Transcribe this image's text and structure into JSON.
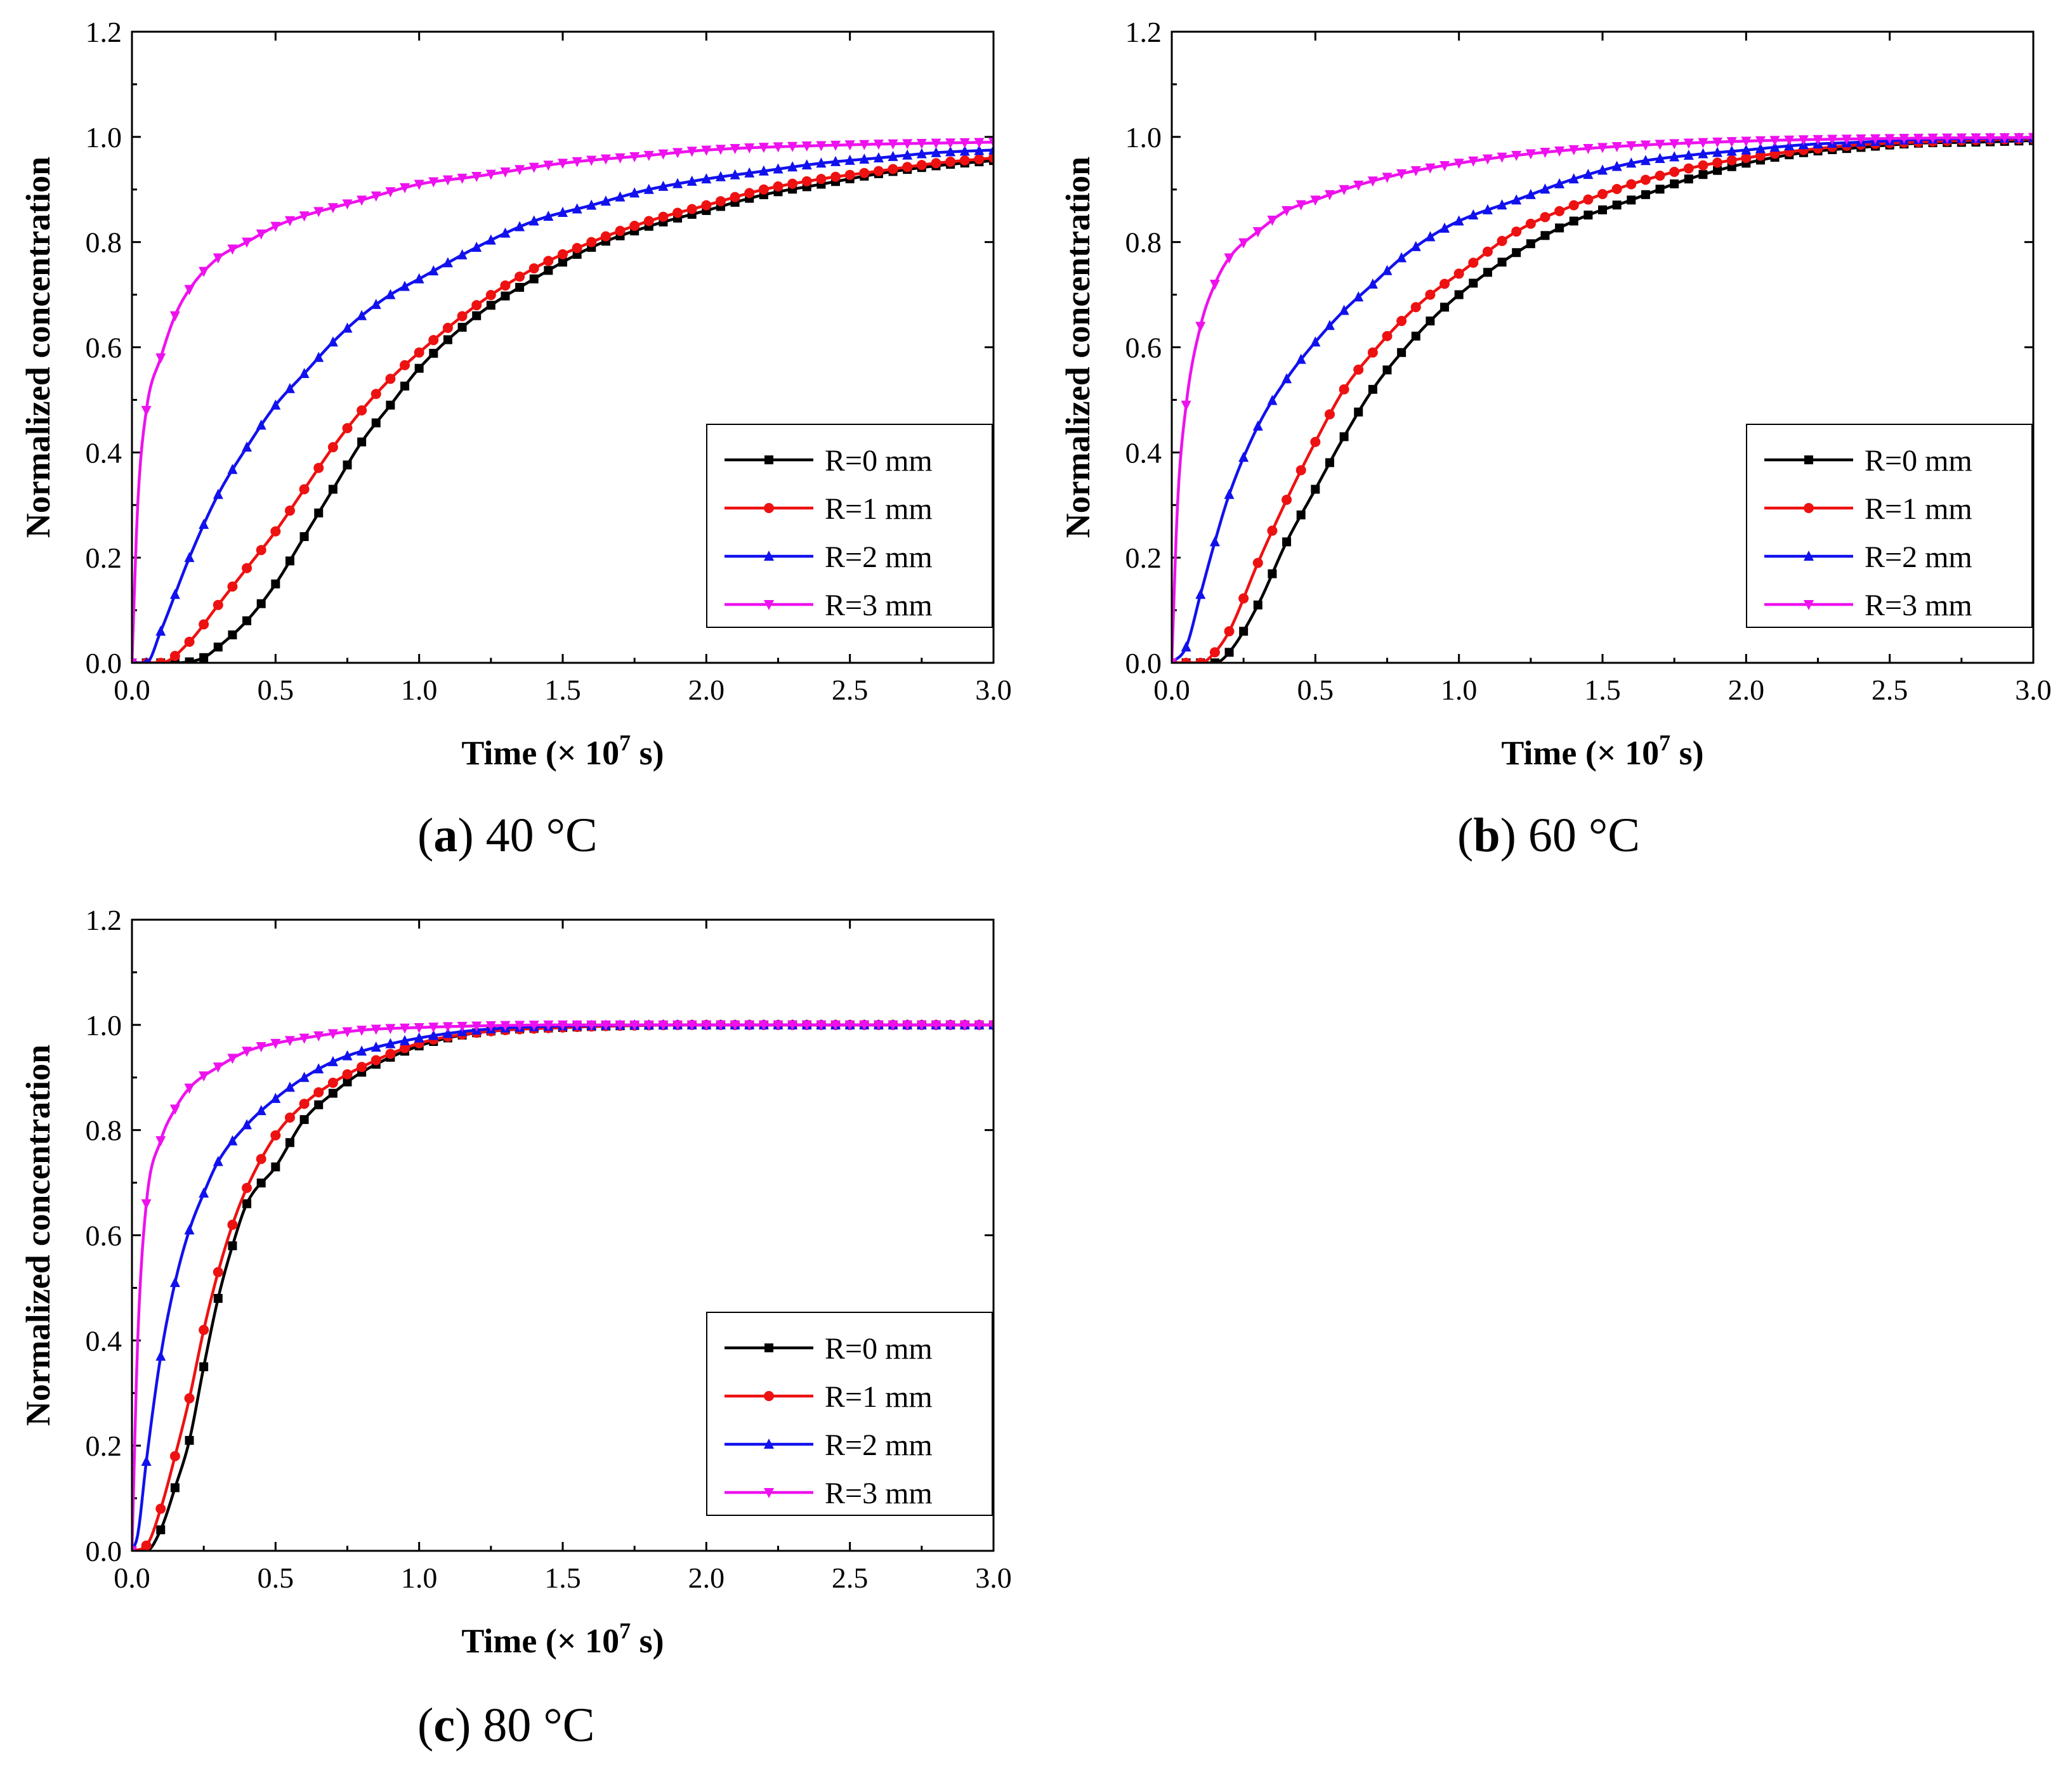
{
  "colors": {
    "R=0 mm": "#000000",
    "R=1 mm": "#ee1111",
    "R=2 mm": "#1111ee",
    "R=3 mm": "#ee11ee"
  },
  "chart_data": [
    {
      "type": "line",
      "caption_letter": "a",
      "caption_rest": "40 °C",
      "xlabel_main": "Time (× 10",
      "xlabel_sup": "7",
      "xlabel_end": " s)",
      "ylabel": "Normalized concentration",
      "xlim": [
        0,
        3.0
      ],
      "ylim": [
        0,
        1.2
      ],
      "xticks": [
        "0.0",
        "0.5",
        "1.0",
        "1.5",
        "2.0",
        "2.5",
        "3.0"
      ],
      "yticks": [
        "0.0",
        "0.2",
        "0.4",
        "0.6",
        "0.8",
        "1.0",
        "1.2"
      ],
      "legend_position": "bottom-right",
      "series": [
        {
          "name": "R=0 mm",
          "marker": "square",
          "x": [
            0,
            0.15,
            0.25,
            0.3,
            0.4,
            0.5,
            0.6,
            0.7,
            0.8,
            0.9,
            1.0,
            1.2,
            1.4,
            1.6,
            1.8,
            2.0,
            2.2,
            2.4,
            2.6,
            2.8,
            3.0
          ],
          "y": [
            0,
            0,
            0.01,
            0.03,
            0.08,
            0.15,
            0.24,
            0.33,
            0.42,
            0.49,
            0.56,
            0.66,
            0.73,
            0.79,
            0.83,
            0.86,
            0.89,
            0.91,
            0.93,
            0.945,
            0.955
          ]
        },
        {
          "name": "R=1 mm",
          "marker": "circle",
          "x": [
            0,
            0.1,
            0.2,
            0.3,
            0.4,
            0.5,
            0.6,
            0.7,
            0.8,
            0.9,
            1.0,
            1.2,
            1.4,
            1.6,
            1.8,
            2.0,
            2.2,
            2.4,
            2.6,
            2.8,
            3.0
          ],
          "y": [
            0,
            0,
            0.04,
            0.11,
            0.18,
            0.25,
            0.33,
            0.41,
            0.48,
            0.54,
            0.59,
            0.68,
            0.75,
            0.8,
            0.84,
            0.87,
            0.9,
            0.92,
            0.935,
            0.95,
            0.96
          ]
        },
        {
          "name": "R=2 mm",
          "marker": "triangle-up",
          "x": [
            0,
            0.05,
            0.1,
            0.2,
            0.3,
            0.4,
            0.5,
            0.6,
            0.7,
            0.8,
            0.9,
            1.0,
            1.2,
            1.4,
            1.6,
            1.8,
            2.0,
            2.2,
            2.4,
            2.6,
            2.8,
            3.0
          ],
          "y": [
            0,
            0,
            0.06,
            0.2,
            0.32,
            0.41,
            0.49,
            0.55,
            0.61,
            0.66,
            0.7,
            0.73,
            0.79,
            0.84,
            0.87,
            0.9,
            0.92,
            0.935,
            0.95,
            0.96,
            0.97,
            0.975
          ]
        },
        {
          "name": "R=3 mm",
          "marker": "triangle-down",
          "x": [
            0,
            0.02,
            0.05,
            0.1,
            0.15,
            0.2,
            0.3,
            0.4,
            0.5,
            0.6,
            0.8,
            1.0,
            1.2,
            1.5,
            1.8,
            2.0,
            2.5,
            3.0
          ],
          "y": [
            0,
            0.3,
            0.48,
            0.58,
            0.66,
            0.71,
            0.77,
            0.8,
            0.83,
            0.85,
            0.88,
            0.91,
            0.925,
            0.95,
            0.965,
            0.975,
            0.985,
            0.99
          ]
        }
      ]
    },
    {
      "type": "line",
      "caption_letter": "b",
      "caption_rest": "60 °C",
      "xlabel_main": "Time (× 10",
      "xlabel_sup": "7",
      "xlabel_end": " s)",
      "ylabel": "Normalized concentration",
      "xlim": [
        0,
        3.0
      ],
      "ylim": [
        0,
        1.2
      ],
      "xticks": [
        "0.0",
        "0.5",
        "1.0",
        "1.5",
        "2.0",
        "2.5",
        "3.0"
      ],
      "yticks": [
        "0.0",
        "0.2",
        "0.4",
        "0.6",
        "0.8",
        "1.0",
        "1.2"
      ],
      "legend_position": "bottom-right",
      "series": [
        {
          "name": "R=0 mm",
          "marker": "square",
          "x": [
            0,
            0.15,
            0.2,
            0.3,
            0.4,
            0.5,
            0.6,
            0.7,
            0.8,
            0.9,
            1.0,
            1.2,
            1.4,
            1.6,
            1.8,
            2.0,
            2.2,
            2.4,
            2.6,
            2.8,
            3.0
          ],
          "y": [
            0,
            0,
            0.02,
            0.11,
            0.23,
            0.33,
            0.43,
            0.52,
            0.59,
            0.65,
            0.7,
            0.78,
            0.84,
            0.88,
            0.92,
            0.95,
            0.97,
            0.98,
            0.988,
            0.99,
            0.993
          ]
        },
        {
          "name": "R=1 mm",
          "marker": "circle",
          "x": [
            0,
            0.1,
            0.15,
            0.2,
            0.3,
            0.4,
            0.5,
            0.6,
            0.7,
            0.8,
            0.9,
            1.0,
            1.2,
            1.4,
            1.6,
            1.8,
            2.0,
            2.2,
            2.4,
            2.6,
            2.8,
            3.0
          ],
          "y": [
            0,
            0,
            0.02,
            0.06,
            0.19,
            0.31,
            0.42,
            0.52,
            0.59,
            0.65,
            0.7,
            0.74,
            0.82,
            0.87,
            0.91,
            0.94,
            0.96,
            0.975,
            0.985,
            0.99,
            0.994,
            0.996
          ]
        },
        {
          "name": "R=2 mm",
          "marker": "triangle-up",
          "x": [
            0,
            0.05,
            0.1,
            0.15,
            0.2,
            0.3,
            0.4,
            0.5,
            0.6,
            0.7,
            0.8,
            0.9,
            1.0,
            1.2,
            1.4,
            1.6,
            1.8,
            2.0,
            2.2,
            2.4,
            2.6,
            2.8,
            3.0
          ],
          "y": [
            0,
            0.03,
            0.13,
            0.23,
            0.32,
            0.45,
            0.54,
            0.61,
            0.67,
            0.72,
            0.77,
            0.81,
            0.84,
            0.88,
            0.92,
            0.95,
            0.965,
            0.975,
            0.985,
            0.99,
            0.995,
            0.997,
            0.998
          ]
        },
        {
          "name": "R=3 mm",
          "marker": "triangle-down",
          "x": [
            0,
            0.02,
            0.05,
            0.1,
            0.15,
            0.2,
            0.3,
            0.4,
            0.5,
            0.6,
            0.8,
            1.0,
            1.2,
            1.5,
            2.0,
            2.5,
            3.0
          ],
          "y": [
            0,
            0.3,
            0.49,
            0.64,
            0.72,
            0.77,
            0.82,
            0.86,
            0.88,
            0.9,
            0.93,
            0.95,
            0.965,
            0.98,
            0.992,
            0.997,
            0.999
          ]
        }
      ]
    },
    {
      "type": "line",
      "caption_letter": "c",
      "caption_rest": "80 °C",
      "xlabel_main": "Time (× 10",
      "xlabel_sup": "7",
      "xlabel_end": " s)",
      "ylabel": "Normalized concentration",
      "xlim": [
        0,
        3.0
      ],
      "ylim": [
        0,
        1.2
      ],
      "xticks": [
        "0.0",
        "0.5",
        "1.0",
        "1.5",
        "2.0",
        "2.5",
        "3.0"
      ],
      "yticks": [
        "0.0",
        "0.2",
        "0.4",
        "0.6",
        "0.8",
        "1.0",
        "1.2"
      ],
      "legend_position": "bottom-right",
      "series": [
        {
          "name": "R=0 mm",
          "marker": "square",
          "x": [
            0,
            0.05,
            0.1,
            0.15,
            0.2,
            0.25,
            0.3,
            0.35,
            0.4,
            0.5,
            0.6,
            0.7,
            0.8,
            1.0,
            1.2,
            1.5,
            2.0,
            2.5,
            3.0
          ],
          "y": [
            0,
            0,
            0.04,
            0.12,
            0.21,
            0.35,
            0.48,
            0.58,
            0.66,
            0.73,
            0.82,
            0.87,
            0.91,
            0.96,
            0.985,
            0.995,
            1.0,
            1.0,
            1.0
          ]
        },
        {
          "name": "R=1 mm",
          "marker": "circle",
          "x": [
            0,
            0.05,
            0.1,
            0.15,
            0.2,
            0.25,
            0.3,
            0.35,
            0.4,
            0.5,
            0.6,
            0.7,
            0.8,
            1.0,
            1.2,
            1.5,
            2.0,
            2.5,
            3.0
          ],
          "y": [
            0,
            0.01,
            0.08,
            0.18,
            0.29,
            0.42,
            0.53,
            0.62,
            0.69,
            0.79,
            0.85,
            0.89,
            0.92,
            0.965,
            0.985,
            0.995,
            1.0,
            1.0,
            1.0
          ]
        },
        {
          "name": "R=2 mm",
          "marker": "triangle-up",
          "x": [
            0,
            0.02,
            0.05,
            0.1,
            0.15,
            0.2,
            0.25,
            0.3,
            0.4,
            0.5,
            0.6,
            0.7,
            0.8,
            1.0,
            1.2,
            1.5,
            2.0,
            2.5,
            3.0
          ],
          "y": [
            0,
            0.03,
            0.17,
            0.37,
            0.51,
            0.61,
            0.68,
            0.74,
            0.81,
            0.86,
            0.9,
            0.93,
            0.95,
            0.975,
            0.99,
            0.998,
            1.0,
            1.0,
            1.0
          ]
        },
        {
          "name": "R=3 mm",
          "marker": "triangle-down",
          "x": [
            0,
            0.02,
            0.05,
            0.1,
            0.15,
            0.2,
            0.3,
            0.4,
            0.5,
            0.6,
            0.8,
            1.0,
            1.2,
            1.5,
            2.0,
            2.5,
            3.0
          ],
          "y": [
            0,
            0.4,
            0.66,
            0.78,
            0.84,
            0.88,
            0.92,
            0.95,
            0.965,
            0.975,
            0.99,
            0.995,
            0.998,
            1.0,
            1.0,
            1.0,
            1.0
          ]
        }
      ]
    }
  ]
}
